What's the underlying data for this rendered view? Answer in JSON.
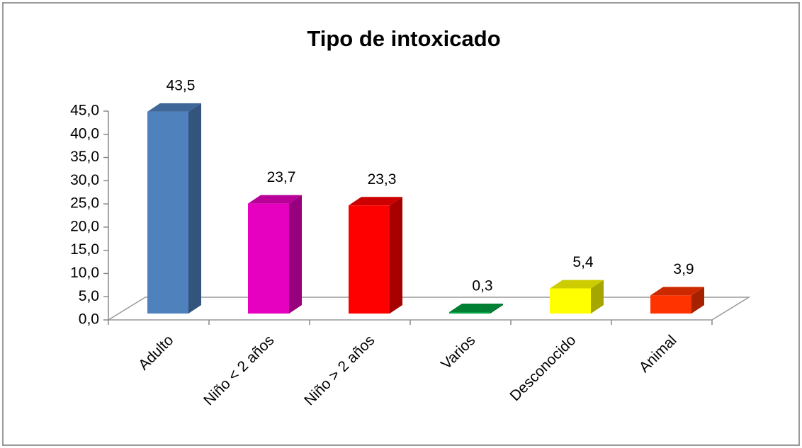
{
  "chart_data": {
    "type": "bar3d",
    "title": "Tipo de intoxicado",
    "categories": [
      "Adulto",
      "Niño < 2 años",
      "Niño > 2 años",
      "Varios",
      "Desconocido",
      "Animal"
    ],
    "values": [
      43.5,
      23.7,
      23.3,
      0.3,
      5.4,
      3.9
    ],
    "value_labels": [
      "43,5",
      "23,7",
      "23,3",
      "0,3",
      "5,4",
      "3,9"
    ],
    "colors": [
      "#4f81bd",
      "#e600bf",
      "#ff0000",
      "#00a040",
      "#ffff00",
      "#ff3300"
    ],
    "ylim": [
      0,
      45
    ],
    "yticks": [
      {
        "value": 0,
        "label": "0,0"
      },
      {
        "value": 5,
        "label": "5,0"
      },
      {
        "value": 10,
        "label": "10,0"
      },
      {
        "value": 15,
        "label": "15,0"
      },
      {
        "value": 20,
        "label": "20,0"
      },
      {
        "value": 25,
        "label": "25,0"
      },
      {
        "value": 30,
        "label": "30,0"
      },
      {
        "value": 35,
        "label": "35,0"
      },
      {
        "value": 40,
        "label": "40,0"
      },
      {
        "value": 45,
        "label": "45,0"
      }
    ]
  }
}
